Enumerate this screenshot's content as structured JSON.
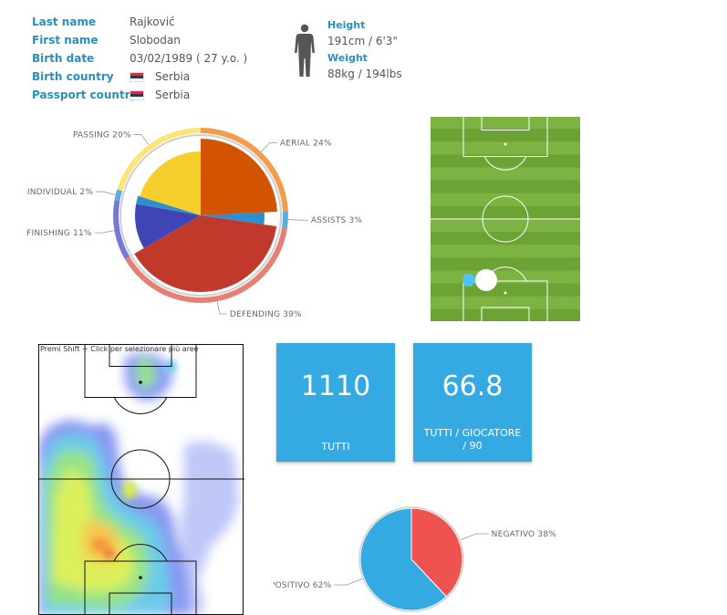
{
  "player": {
    "fields": [
      {
        "label": "Last name",
        "value": "Rajković"
      },
      {
        "label": "First name",
        "value": "Slobodan"
      },
      {
        "label": "Birth date",
        "value": "03/02/1989 ( 27 y.o. )"
      },
      {
        "label": "Birth country",
        "value": "Serbia",
        "flag": true
      },
      {
        "label": "Passport country",
        "value": "Serbia",
        "flag": true
      }
    ],
    "height_label": "Height",
    "height_value": "191cm / 6'3\"",
    "weight_label": "Weight",
    "weight_value": "88kg / 194lbs"
  },
  "action_pie": {
    "slices": [
      {
        "name": "AERIAL",
        "label": "AERIAL 24%",
        "percent": 24,
        "color": "#d35400",
        "ring": "#ef8c2c"
      },
      {
        "name": "ASSISTS",
        "label": "ASSISTS 3%",
        "percent": 3,
        "color": "#2d8fcf",
        "ring": "#3fa0dd"
      },
      {
        "name": "DEFENDING",
        "label": "DEFENDING 39%",
        "percent": 39,
        "color": "#c0392b",
        "ring": "#e06a5c"
      },
      {
        "name": "FINISHING",
        "label": "FINISHING 11%",
        "percent": 11,
        "color": "#3f45b5",
        "ring": "#5b62cc"
      },
      {
        "name": "INDIVIDUAL",
        "label": "INDIVIDUAL 2%",
        "percent": 2,
        "color": "#2d8fcf",
        "ring": "#3fa0dd"
      },
      {
        "name": "PASSING",
        "label": "PASSING 20%",
        "percent": 20,
        "color": "#f7cf2d",
        "ring": "#f7e35e"
      }
    ]
  },
  "cards": [
    {
      "value": "1110",
      "caption": "TUTTI"
    },
    {
      "value": "66.8",
      "caption": "TUTTI / GIOCATORE / 90"
    }
  ],
  "heatmap": {
    "hint": "Premi Shift + Click per selezionare più aree"
  },
  "outcome_pie": {
    "slices": [
      {
        "name": "NEGATIVO",
        "label": "NEGATIVO 38%",
        "percent": 38,
        "color": "#ef5350"
      },
      {
        "name": "POSITIVO",
        "label": "POSITIVO 62%",
        "percent": 62,
        "color": "#35a9e1"
      }
    ]
  },
  "colors": {
    "accent": "#2a8fbd",
    "card": "#35a9e1",
    "pitch_light": "#7cb342",
    "pitch_dark": "#6da334"
  }
}
